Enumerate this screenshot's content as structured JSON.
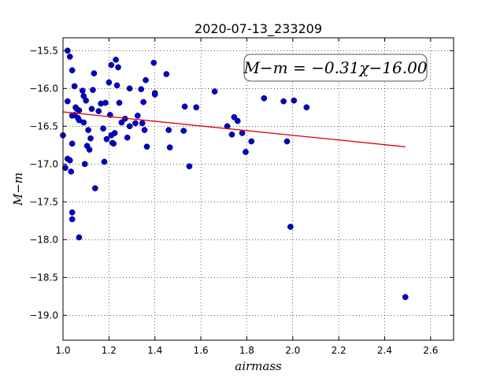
{
  "chart_data": {
    "type": "scatter",
    "title": "2020-07-13_233209",
    "xlabel": "airmass",
    "ylabel": "M−m",
    "xlim": [
      1.0,
      2.7
    ],
    "ylim": [
      -19.33,
      -15.33
    ],
    "inverted_y": true,
    "xticks": [
      1.0,
      1.2,
      1.4,
      1.6,
      1.8,
      2.0,
      2.2,
      2.4,
      2.6
    ],
    "xtick_labels": [
      "1.0",
      "1.2",
      "1.4",
      "1.6",
      "1.8",
      "2.0",
      "2.2",
      "2.4",
      "2.6"
    ],
    "yticks": [
      -15.5,
      -16.0,
      -16.5,
      -17.0,
      -17.5,
      -18.0,
      -18.5,
      -19.0
    ],
    "ytick_labels": [
      "−15.5",
      "−16.0",
      "−16.5",
      "−17.0",
      "−17.5",
      "−18.0",
      "−18.5",
      "−19.0"
    ],
    "grid": true,
    "annotation": "M−m = −0.31χ−16.00",
    "point_color": "#0000cc",
    "fit_color": "#dd0000",
    "fit": {
      "slope": -0.31,
      "intercept": -16.0,
      "x_range": [
        1.0,
        2.49
      ]
    },
    "points": [
      [
        1.0,
        -16.62
      ],
      [
        1.01,
        -17.05
      ],
      [
        1.02,
        -15.5
      ],
      [
        1.02,
        -16.17
      ],
      [
        1.02,
        -16.93
      ],
      [
        1.03,
        -15.58
      ],
      [
        1.03,
        -16.95
      ],
      [
        1.035,
        -17.1
      ],
      [
        1.04,
        -15.76
      ],
      [
        1.04,
        -16.36
      ],
      [
        1.04,
        -16.73
      ],
      [
        1.04,
        -17.64
      ],
      [
        1.04,
        -17.73
      ],
      [
        1.05,
        -15.97
      ],
      [
        1.05,
        -16.35
      ],
      [
        1.055,
        -16.25
      ],
      [
        1.06,
        -16.27
      ],
      [
        1.065,
        -16.39
      ],
      [
        1.07,
        -16.42
      ],
      [
        1.07,
        -16.29
      ],
      [
        1.07,
        -17.97
      ],
      [
        1.085,
        -16.03
      ],
      [
        1.09,
        -16.45
      ],
      [
        1.09,
        -16.1
      ],
      [
        1.095,
        -17.0
      ],
      [
        1.1,
        -16.16
      ],
      [
        1.105,
        -16.76
      ],
      [
        1.11,
        -16.55
      ],
      [
        1.115,
        -16.81
      ],
      [
        1.12,
        -16.66
      ],
      [
        1.125,
        -16.27
      ],
      [
        1.13,
        -16.02
      ],
      [
        1.135,
        -15.8
      ],
      [
        1.14,
        -17.32
      ],
      [
        1.155,
        -16.3
      ],
      [
        1.165,
        -16.2
      ],
      [
        1.175,
        -16.53
      ],
      [
        1.18,
        -16.97
      ],
      [
        1.185,
        -16.19
      ],
      [
        1.19,
        -16.67
      ],
      [
        1.2,
        -15.92
      ],
      [
        1.205,
        -16.35
      ],
      [
        1.21,
        -15.69
      ],
      [
        1.21,
        -16.62
      ],
      [
        1.215,
        -16.72
      ],
      [
        1.22,
        -16.73
      ],
      [
        1.225,
        -16.59
      ],
      [
        1.23,
        -15.62
      ],
      [
        1.235,
        -15.96
      ],
      [
        1.24,
        -15.72
      ],
      [
        1.245,
        -16.19
      ],
      [
        1.255,
        -16.45
      ],
      [
        1.27,
        -16.4
      ],
      [
        1.28,
        -16.65
      ],
      [
        1.29,
        -16.5
      ],
      [
        1.29,
        -16.0
      ],
      [
        1.315,
        -16.46
      ],
      [
        1.325,
        -16.36
      ],
      [
        1.34,
        -16.01
      ],
      [
        1.345,
        -16.46
      ],
      [
        1.35,
        -16.18
      ],
      [
        1.355,
        -16.55
      ],
      [
        1.36,
        -15.89
      ],
      [
        1.365,
        -16.77
      ],
      [
        1.395,
        -15.66
      ],
      [
        1.4,
        -16.06
      ],
      [
        1.4,
        -16.08
      ],
      [
        1.45,
        -15.81
      ],
      [
        1.46,
        -16.55
      ],
      [
        1.465,
        -16.78
      ],
      [
        1.525,
        -16.56
      ],
      [
        1.53,
        -16.24
      ],
      [
        1.55,
        -17.03
      ],
      [
        1.58,
        -16.25
      ],
      [
        1.66,
        -16.04
      ],
      [
        1.715,
        -16.5
      ],
      [
        1.735,
        -16.61
      ],
      [
        1.745,
        -16.38
      ],
      [
        1.76,
        -16.43
      ],
      [
        1.78,
        -16.59
      ],
      [
        1.795,
        -16.84
      ],
      [
        1.82,
        -16.7
      ],
      [
        1.875,
        -16.13
      ],
      [
        1.96,
        -16.17
      ],
      [
        1.975,
        -16.7
      ],
      [
        1.99,
        -17.83
      ],
      [
        2.005,
        -16.16
      ],
      [
        2.06,
        -16.25
      ],
      [
        2.49,
        -18.76
      ]
    ]
  }
}
